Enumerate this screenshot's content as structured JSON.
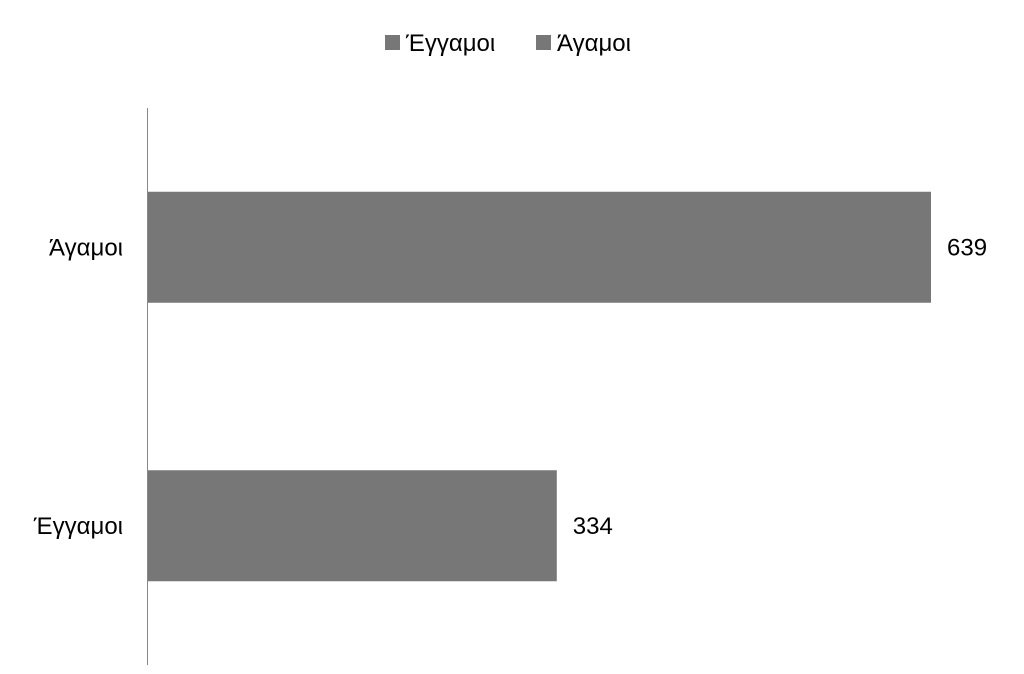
{
  "chart_data": {
    "type": "bar",
    "orientation": "horizontal",
    "categories": [
      "Έγγαμοι",
      "Άγαμοι"
    ],
    "values": [
      334,
      639
    ],
    "data_labels": [
      "334",
      "639"
    ],
    "legend": {
      "position": "top",
      "entries": [
        "Έγγαμοι",
        "Άγαμοι"
      ]
    },
    "grid": false,
    "colors": {
      "bar": "#777777",
      "axis": "#888888",
      "text": "#000000"
    }
  }
}
